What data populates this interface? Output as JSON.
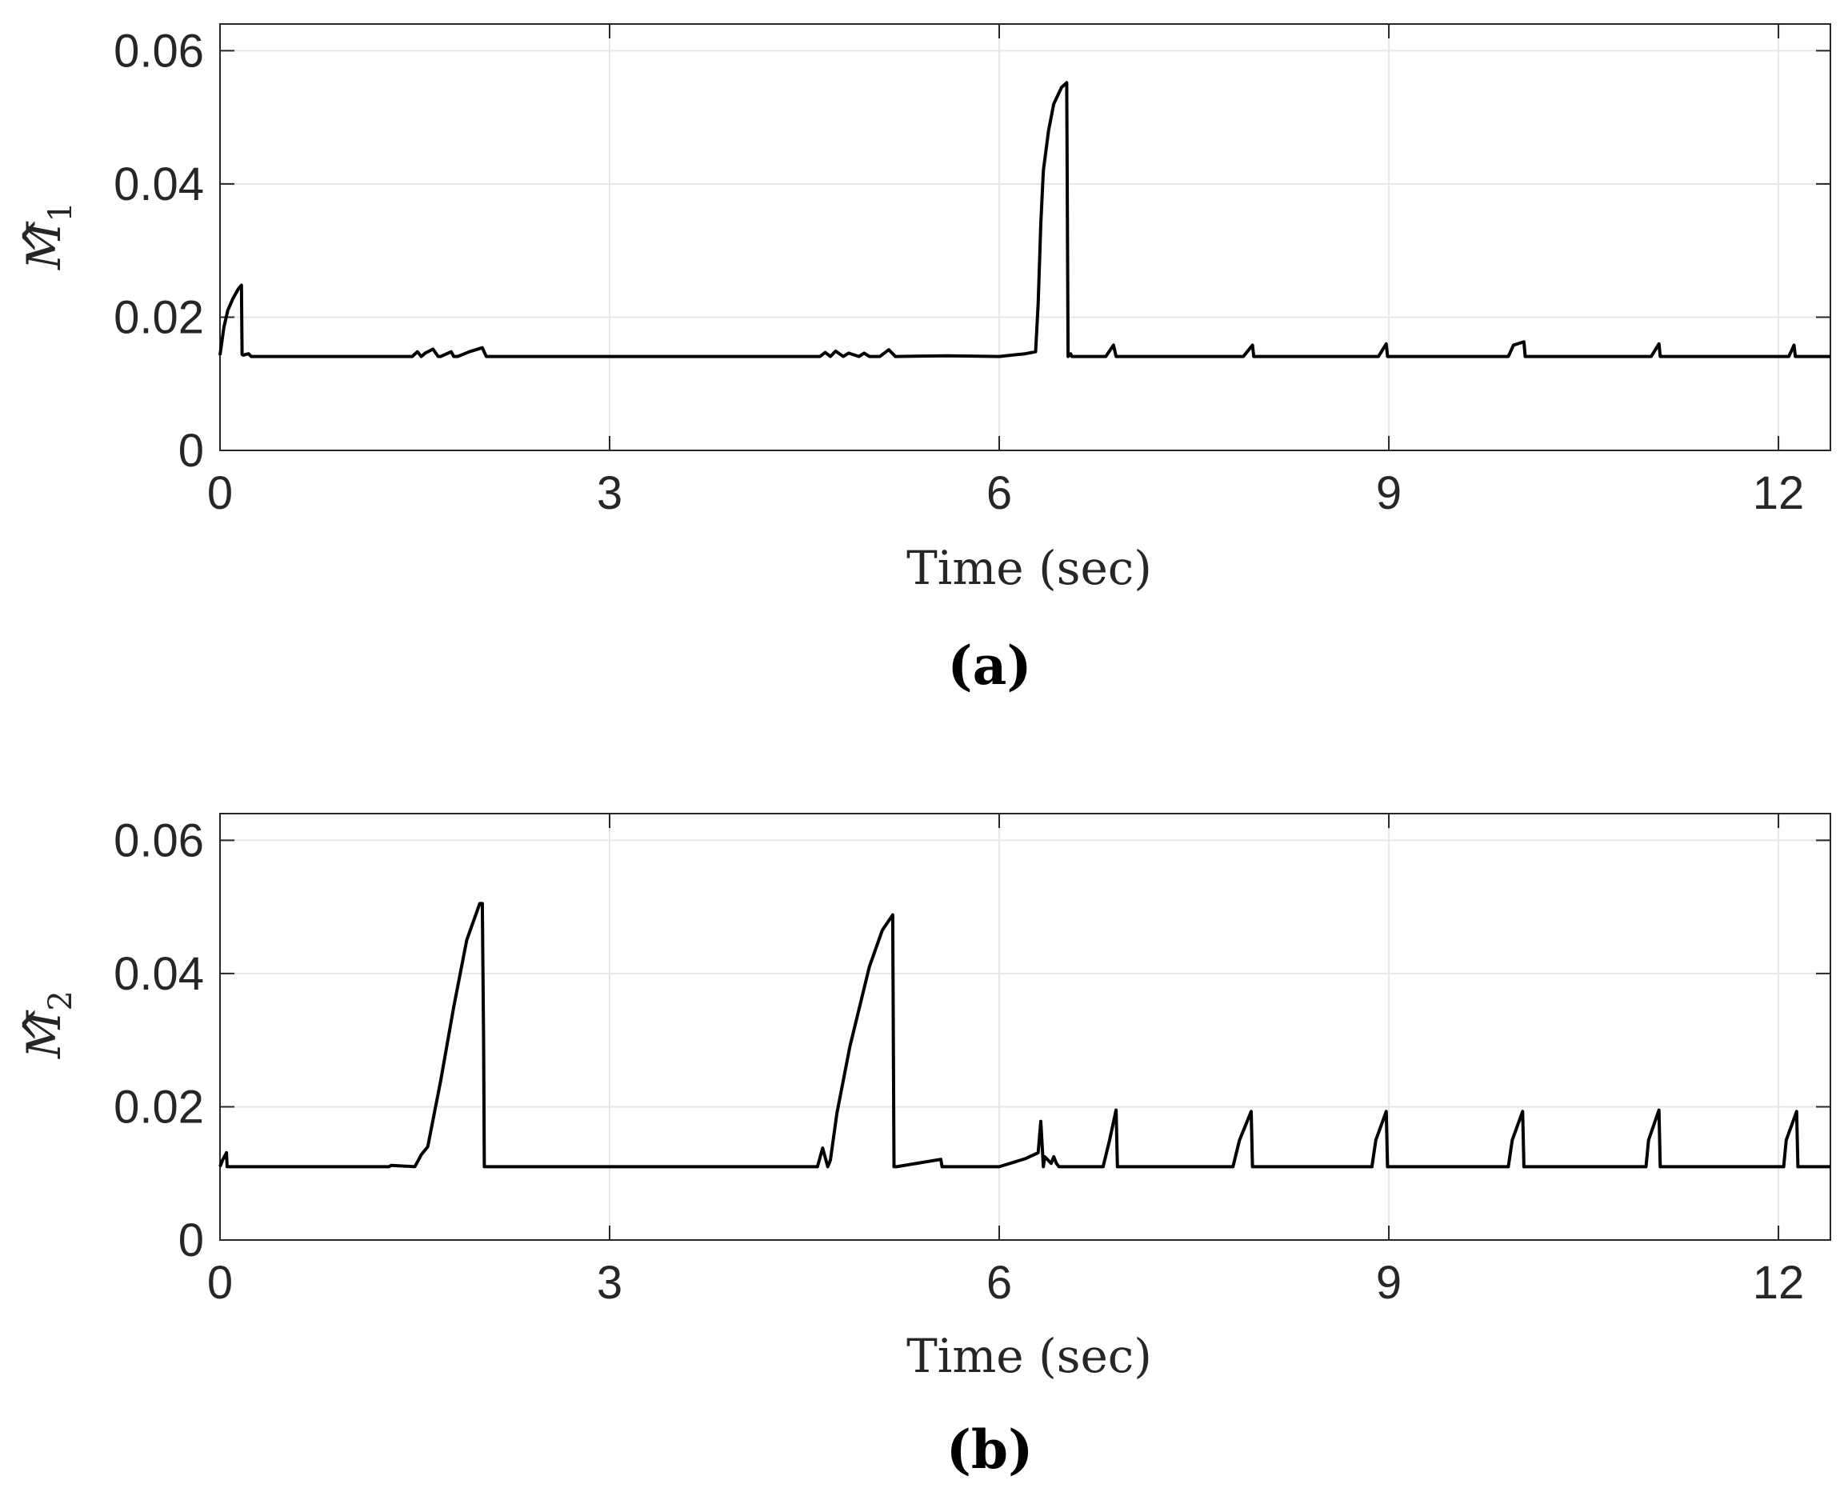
{
  "chart_data": [
    {
      "type": "line",
      "panel": "(a)",
      "xlabel": "Time (sec)",
      "ylabel": "M",
      "ylabel_hat": "^",
      "ylabel_subscript": "1",
      "xlim": [
        0,
        12.4
      ],
      "ylim": [
        0,
        0.064
      ],
      "xticks": [
        0,
        3,
        6,
        9,
        12
      ],
      "xtick_labels": [
        "0",
        "3",
        "6",
        "9",
        "12"
      ],
      "yticks": [
        0,
        0.02,
        0.04,
        0.06
      ],
      "ytick_labels": [
        "0",
        "0.02",
        "0.04",
        "0.06"
      ],
      "grid": true,
      "line_color": "#000000",
      "series": [
        {
          "x": [
            0,
            0.03,
            0.06,
            0.1,
            0.14,
            0.165,
            0.17,
            0.18,
            0.22,
            0.24,
            0.26,
            1.48,
            1.52,
            1.55,
            1.58,
            1.61,
            1.64,
            1.68,
            1.7,
            1.78,
            1.8,
            1.83,
            1.92,
            2.02,
            2.05,
            2.06,
            4.62,
            4.66,
            4.7,
            4.74,
            4.8,
            4.84,
            4.92,
            4.96,
            5.0,
            5.08,
            5.15,
            5.2,
            5.21,
            5.6,
            6.0,
            6.2,
            6.28,
            6.3,
            6.32,
            6.34,
            6.38,
            6.42,
            6.48,
            6.52,
            6.53,
            6.55,
            6.56,
            6.58,
            6.6,
            6.82,
            6.88,
            6.9,
            6.91,
            7.88,
            7.95,
            7.96,
            8.92,
            8.98,
            8.99,
            9.92,
            9.96,
            10.04,
            10.05,
            11.02,
            11.08,
            11.09,
            12.08,
            12.12,
            12.13,
            12.4
          ],
          "y": [
            0.0143,
            0.0185,
            0.021,
            0.0228,
            0.0242,
            0.0248,
            0.0144,
            0.0143,
            0.0145,
            0.0141,
            0.0141,
            0.0141,
            0.0148,
            0.0141,
            0.0146,
            0.0149,
            0.0152,
            0.0141,
            0.0141,
            0.0148,
            0.0141,
            0.0141,
            0.0148,
            0.0154,
            0.0141,
            0.0141,
            0.0141,
            0.0147,
            0.0141,
            0.0149,
            0.0141,
            0.0146,
            0.0141,
            0.0146,
            0.0141,
            0.0141,
            0.0151,
            0.0141,
            0.0141,
            0.0142,
            0.0141,
            0.0145,
            0.0148,
            0.022,
            0.034,
            0.042,
            0.048,
            0.052,
            0.0545,
            0.0552,
            0.0141,
            0.0145,
            0.0141,
            0.0141,
            0.0141,
            0.0141,
            0.0158,
            0.0141,
            0.0141,
            0.0141,
            0.0158,
            0.0141,
            0.0141,
            0.016,
            0.0141,
            0.0141,
            0.0158,
            0.0163,
            0.0141,
            0.0141,
            0.016,
            0.0141,
            0.0141,
            0.0158,
            0.0141,
            0.0141
          ]
        }
      ]
    },
    {
      "type": "line",
      "panel": "(b)",
      "xlabel": "Time (sec)",
      "ylabel": "M",
      "ylabel_hat": "^",
      "ylabel_subscript": "2",
      "xlim": [
        0,
        12.4
      ],
      "ylim": [
        0,
        0.064
      ],
      "xticks": [
        0,
        3,
        6,
        9,
        12
      ],
      "xtick_labels": [
        "0",
        "3",
        "6",
        "9",
        "12"
      ],
      "yticks": [
        0,
        0.02,
        0.04,
        0.06
      ],
      "ytick_labels": [
        "0",
        "0.02",
        "0.04",
        "0.06"
      ],
      "grid": true,
      "line_color": "#000000",
      "series": [
        {
          "x": [
            0,
            0.02,
            0.05,
            0.055,
            0.06,
            1.3,
            1.32,
            1.5,
            1.55,
            1.6,
            1.7,
            1.8,
            1.9,
            2.0,
            2.02,
            2.03,
            2.035,
            2.05,
            4.6,
            4.64,
            4.68,
            4.7,
            4.75,
            4.85,
            5.0,
            5.1,
            5.18,
            5.19,
            5.21,
            5.55,
            5.56,
            6.0,
            6.2,
            6.3,
            6.32,
            6.34,
            6.35,
            6.4,
            6.42,
            6.44,
            6.46,
            6.48,
            6.5,
            6.8,
            6.85,
            6.9,
            6.91,
            7.8,
            7.85,
            7.94,
            7.95,
            8.87,
            8.9,
            8.98,
            8.99,
            9.92,
            9.95,
            10.03,
            10.04,
            10.98,
            11.0,
            11.08,
            11.09,
            12.04,
            12.06,
            12.14,
            12.15,
            12.4
          ],
          "y": [
            0.011,
            0.012,
            0.0131,
            0.011,
            0.011,
            0.011,
            0.0112,
            0.011,
            0.0128,
            0.014,
            0.024,
            0.035,
            0.045,
            0.0505,
            0.0505,
            0.03,
            0.011,
            0.011,
            0.011,
            0.0138,
            0.011,
            0.012,
            0.019,
            0.029,
            0.041,
            0.0465,
            0.0488,
            0.011,
            0.011,
            0.0121,
            0.011,
            0.011,
            0.0122,
            0.0131,
            0.0178,
            0.011,
            0.0125,
            0.0115,
            0.0125,
            0.0115,
            0.011,
            0.011,
            0.011,
            0.011,
            0.015,
            0.0195,
            0.011,
            0.011,
            0.015,
            0.0193,
            0.011,
            0.011,
            0.015,
            0.0193,
            0.011,
            0.011,
            0.015,
            0.0193,
            0.011,
            0.011,
            0.015,
            0.0195,
            0.011,
            0.011,
            0.015,
            0.0193,
            0.011,
            0.011
          ]
        }
      ]
    }
  ]
}
